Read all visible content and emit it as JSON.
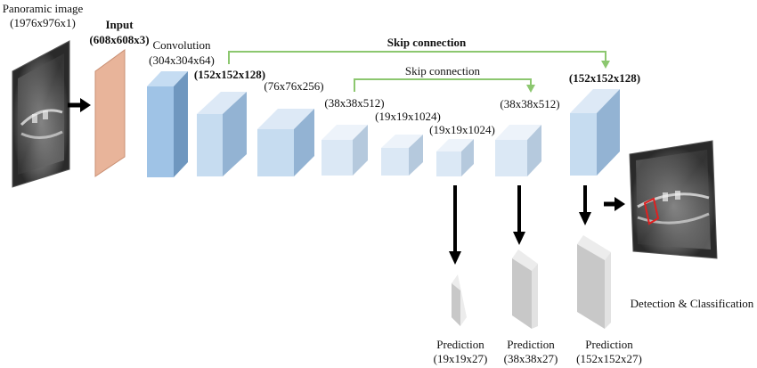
{
  "input_image": {
    "title": "Panoramic image",
    "size": "(1976x976x1)"
  },
  "input_layer": {
    "title": "Input",
    "size": "(608x608x3)"
  },
  "convolution": {
    "title": "Convolution",
    "size": "(304x304x64)"
  },
  "feature_maps": [
    {
      "label": "(152x152x128)"
    },
    {
      "label": "(76x76x256)"
    },
    {
      "label": "(38x38x512)"
    },
    {
      "label": "(19x19x1024)"
    },
    {
      "label": "(19x19x1024)"
    },
    {
      "label": "(38x38x512)"
    },
    {
      "label": "(152x152x128)"
    }
  ],
  "skip_connections": {
    "outer": "Skip connection",
    "inner": "Skip connection"
  },
  "predictions": [
    {
      "title": "Prediction",
      "size": "(19x19x27)"
    },
    {
      "title": "Prediction",
      "size": "(38x38x27)"
    },
    {
      "title": "Prediction",
      "size": "(152x152x27)"
    }
  ],
  "output": {
    "label": "Detection & Classification"
  },
  "colors": {
    "input_layer": "#e8b49a",
    "conv_layer": "#9fc3e6",
    "feature_block": "#c6dcf0",
    "light_block": "#dbe8f5",
    "skip_line": "#8cc76f",
    "arrow": "#000000",
    "prediction": "#c8c8c8",
    "detection_box": "#e02020"
  }
}
